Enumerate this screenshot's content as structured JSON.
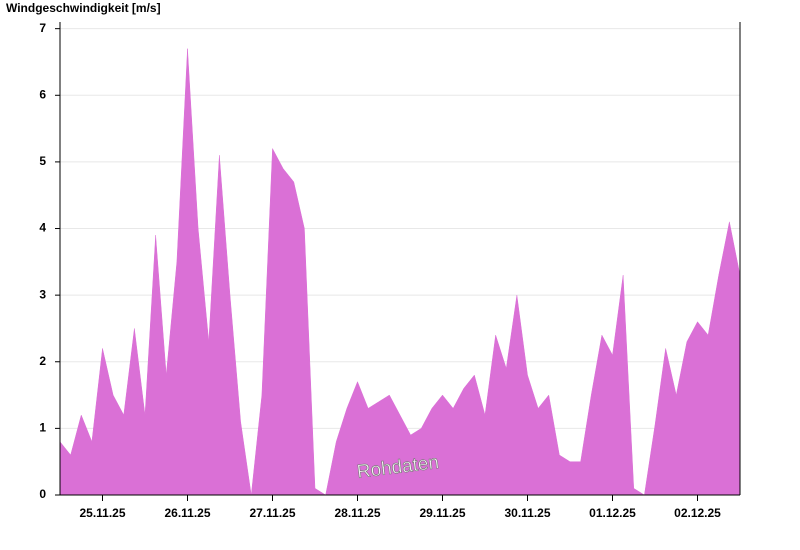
{
  "chart_data": {
    "type": "area",
    "title": "Windgeschwindigkeit [m/s]",
    "annotation": "Rohdaten",
    "color": "#da70d6",
    "x": [
      0,
      0.125,
      0.25,
      0.375,
      0.5,
      0.625,
      0.75,
      0.875,
      1,
      1.125,
      1.25,
      1.375,
      1.5,
      1.625,
      1.75,
      1.875,
      2,
      2.125,
      2.25,
      2.375,
      2.5,
      2.625,
      2.75,
      2.875,
      3,
      3.125,
      3.25,
      3.375,
      3.5,
      3.625,
      3.75,
      3.875,
      4,
      4.125,
      4.25,
      4.375,
      4.5,
      4.625,
      4.75,
      4.875,
      5,
      5.125,
      5.25,
      5.375,
      5.5,
      5.625,
      5.75,
      5.875,
      6,
      6.125,
      6.25,
      6.375,
      6.5,
      6.625,
      6.75,
      6.875,
      7,
      7.125,
      7.25,
      7.375,
      7.5,
      7.625,
      7.75,
      7.875,
      8
    ],
    "values": [
      0.8,
      0.6,
      1.2,
      0.8,
      2.2,
      1.5,
      1.2,
      2.5,
      1.2,
      3.9,
      1.8,
      3.5,
      6.7,
      4.0,
      2.3,
      5.1,
      3.0,
      1.1,
      0,
      1.5,
      5.2,
      4.9,
      4.7,
      4.0,
      0.1,
      0,
      0.8,
      1.3,
      1.7,
      1.3,
      1.4,
      1.5,
      1.2,
      0.9,
      1.0,
      1.3,
      1.5,
      1.3,
      1.6,
      1.8,
      1.2,
      2.4,
      1.9,
      3.0,
      1.8,
      1.3,
      1.5,
      0.6,
      0.5,
      0.5,
      1.5,
      2.4,
      2.1,
      3.3,
      0.1,
      0,
      1.05,
      2.2,
      1.5,
      2.3,
      2.6,
      2.4,
      3.3,
      4.1,
      3.3
    ],
    "xlim": [
      0,
      8
    ],
    "xticks": [
      {
        "value": 0.5,
        "label": "25.11.25"
      },
      {
        "value": 1.5,
        "label": "26.11.25"
      },
      {
        "value": 2.5,
        "label": "27.11.25"
      },
      {
        "value": 3.5,
        "label": "28.11.25"
      },
      {
        "value": 4.5,
        "label": "29.11.25"
      },
      {
        "value": 5.5,
        "label": "30.11.25"
      },
      {
        "value": 6.5,
        "label": "01.12.25"
      },
      {
        "value": 7.5,
        "label": "02.12.25"
      }
    ],
    "ylim": [
      0,
      7.1
    ],
    "yticks": [
      0,
      1,
      2,
      3,
      4,
      5,
      6,
      7
    ],
    "grid": true
  }
}
